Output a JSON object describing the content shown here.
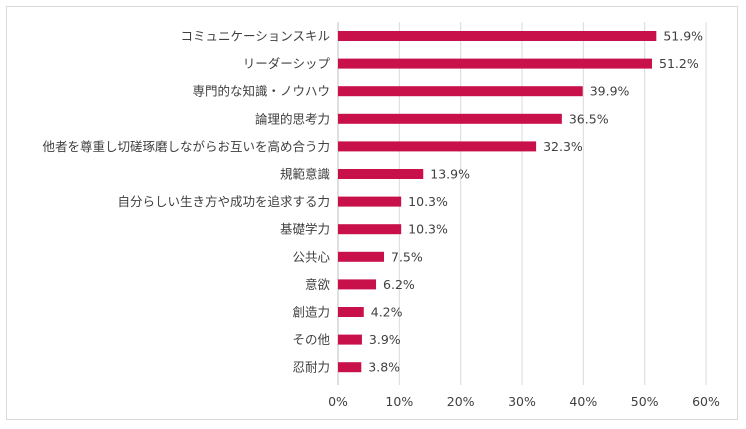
{
  "chart_data": {
    "type": "bar",
    "orientation": "horizontal",
    "categories": [
      "コミュニケーションスキル",
      "リーダーシップ",
      "専門的な知識・ノウハウ",
      "論理的思考力",
      "他者を尊重し切磋琢磨しながらお互いを高め合う力",
      "規範意識",
      "自分らしい生き方や成功を追求する力",
      "基礎学力",
      "公共心",
      "意欲",
      "創造力",
      "その他",
      "忍耐力"
    ],
    "values": [
      51.9,
      51.2,
      39.9,
      36.5,
      32.3,
      13.9,
      10.3,
      10.3,
      7.5,
      6.2,
      4.2,
      3.9,
      3.8
    ],
    "data_labels": [
      "51.9%",
      "51.2%",
      "39.9%",
      "36.5%",
      "32.3%",
      "13.9%",
      "10.3%",
      "10.3%",
      "7.5%",
      "6.2%",
      "4.2%",
      "3.9%",
      "3.8%"
    ],
    "x_ticks": [
      0,
      10,
      20,
      30,
      40,
      50,
      60
    ],
    "x_tick_labels": [
      "0%",
      "10%",
      "20%",
      "30%",
      "40%",
      "50%",
      "60%"
    ],
    "xlim": [
      0,
      60
    ],
    "grid": "vertical",
    "legend": "none",
    "bar_color": "#C8104A",
    "grid_color": "#d9d9d9",
    "text_color": "#404040"
  }
}
